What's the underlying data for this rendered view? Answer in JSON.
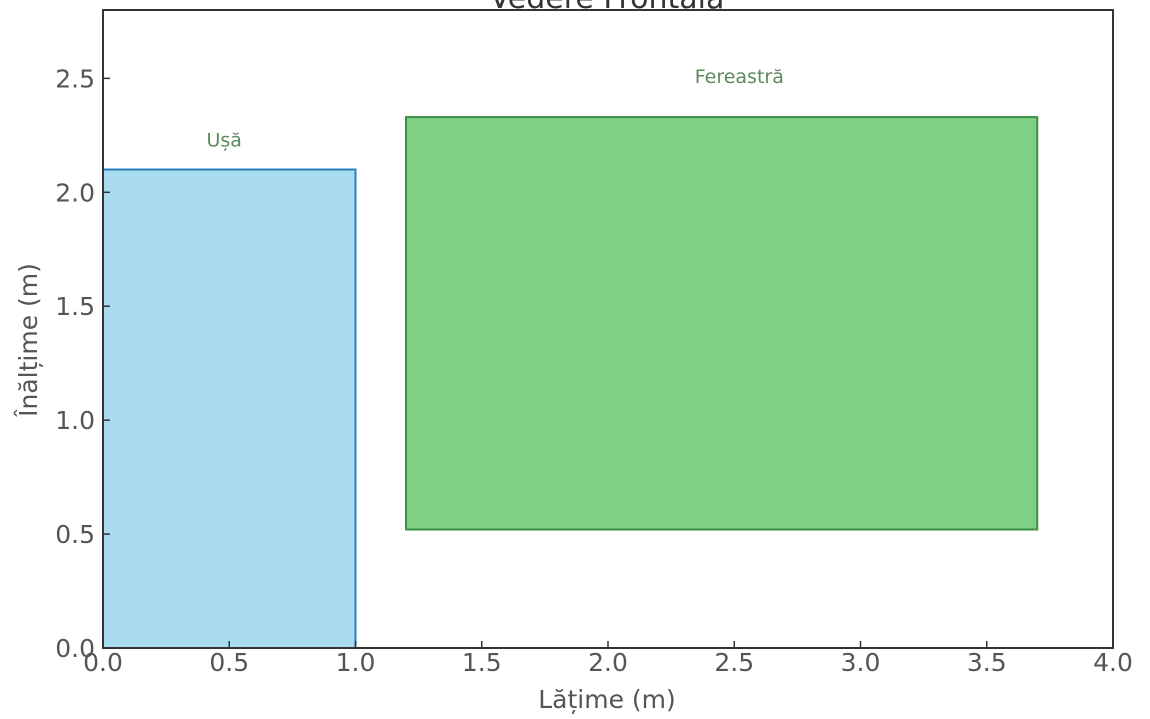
{
  "chart_data": {
    "type": "rect",
    "title": "Vedere Frontală",
    "xlabel": "Lățime (m)",
    "ylabel": "Înălțime (m)",
    "xlim": [
      0,
      4
    ],
    "ylim": [
      0,
      2.8
    ],
    "xticks": [
      "0.0",
      "0.5",
      "1.0",
      "1.5",
      "2.0",
      "2.5",
      "3.0",
      "3.5",
      "4.0"
    ],
    "xtick_values": [
      0,
      0.5,
      1,
      1.5,
      2,
      2.5,
      3,
      3.5,
      4
    ],
    "yticks": [
      "0.0",
      "0.5",
      "1.0",
      "1.5",
      "2.0",
      "2.5"
    ],
    "ytick_values": [
      0,
      0.5,
      1,
      1.5,
      2,
      2.5
    ],
    "grid": false,
    "shapes": [
      {
        "label": "Ușă",
        "x0": 0.0,
        "y0": 0.0,
        "x1": 1.0,
        "y1": 2.1,
        "fill": "#a9dcf0",
        "stroke": "#2b7fc0",
        "label_pos": [
          0.48,
          2.2
        ]
      },
      {
        "label": "Fereastră",
        "x0": 1.2,
        "y0": 0.52,
        "x1": 3.7,
        "y1": 2.33,
        "fill": "#7fcf85",
        "stroke": "#3d8f45",
        "label_pos": [
          2.52,
          2.48
        ]
      }
    ]
  }
}
